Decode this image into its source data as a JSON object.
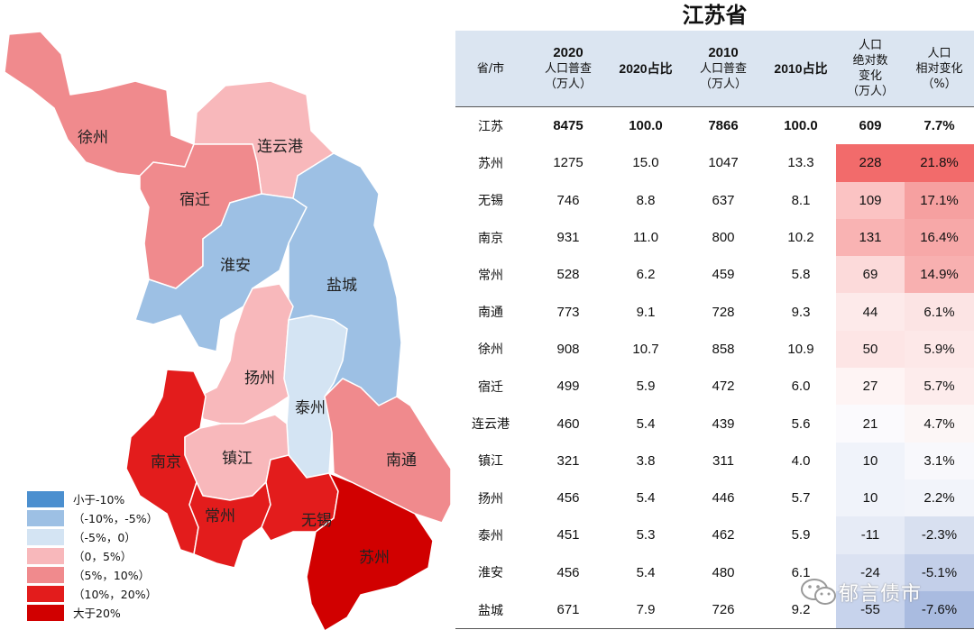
{
  "title": "江苏省",
  "headers": {
    "province": "省/市",
    "pop2020": [
      "2020",
      "人口普查",
      "（万人）"
    ],
    "share2020": "2020占比",
    "pop2010": [
      "2010",
      "人口普查",
      "（万人）"
    ],
    "share2010": "2010占比",
    "abs_change": [
      "人口",
      "绝对数",
      "变化",
      "（万人）"
    ],
    "rel_change": [
      "人口",
      "相对变化",
      "（%）"
    ]
  },
  "rows": [
    {
      "name": "江苏",
      "pop2020": "8475",
      "share2020": "100.0",
      "pop2010": "7866",
      "share2010": "100.0",
      "abs": "609",
      "rel": "7.7%",
      "abs_color": "#ffffff",
      "rel_color": "#ffffff"
    },
    {
      "name": "苏州",
      "pop2020": "1275",
      "share2020": "15.0",
      "pop2010": "1047",
      "share2010": "13.3",
      "abs": "228",
      "rel": "21.8%",
      "abs_color": "#f26b6b",
      "rel_color": "#f26b6b"
    },
    {
      "name": "无锡",
      "pop2020": "746",
      "share2020": "8.8",
      "pop2010": "637",
      "share2010": "8.1",
      "abs": "109",
      "rel": "17.1%",
      "abs_color": "#fbc3c3",
      "rel_color": "#f6a0a0"
    },
    {
      "name": "南京",
      "pop2020": "931",
      "share2020": "11.0",
      "pop2010": "800",
      "share2010": "10.2",
      "abs": "131",
      "rel": "16.4%",
      "abs_color": "#f9b3b3",
      "rel_color": "#f7a8a8"
    },
    {
      "name": "常州",
      "pop2020": "528",
      "share2020": "6.2",
      "pop2010": "459",
      "share2010": "5.8",
      "abs": "69",
      "rel": "14.9%",
      "abs_color": "#fcdada",
      "rel_color": "#f8b0b0"
    },
    {
      "name": "南通",
      "pop2020": "773",
      "share2020": "9.1",
      "pop2010": "728",
      "share2010": "9.3",
      "abs": "44",
      "rel": "6.1%",
      "abs_color": "#fdeaea",
      "rel_color": "#fce4e4"
    },
    {
      "name": "徐州",
      "pop2020": "908",
      "share2020": "10.7",
      "pop2010": "858",
      "share2010": "10.9",
      "abs": "50",
      "rel": "5.9%",
      "abs_color": "#fde5e5",
      "rel_color": "#fde8e8"
    },
    {
      "name": "宿迁",
      "pop2020": "499",
      "share2020": "5.9",
      "pop2010": "472",
      "share2010": "6.0",
      "abs": "27",
      "rel": "5.7%",
      "abs_color": "#fef4f4",
      "rel_color": "#fdecec"
    },
    {
      "name": "连云港",
      "pop2020": "460",
      "share2020": "5.4",
      "pop2010": "439",
      "share2010": "5.6",
      "abs": "21",
      "rel": "4.7%",
      "abs_color": "#fbfafd",
      "rel_color": "#fcf6f6"
    },
    {
      "name": "镇江",
      "pop2020": "321",
      "share2020": "3.8",
      "pop2010": "311",
      "share2010": "4.0",
      "abs": "10",
      "rel": "3.1%",
      "abs_color": "#f0f3fa",
      "rel_color": "#f8f8fc"
    },
    {
      "name": "扬州",
      "pop2020": "456",
      "share2020": "5.4",
      "pop2010": "446",
      "share2010": "5.7",
      "abs": "10",
      "rel": "2.2%",
      "abs_color": "#f0f3fa",
      "rel_color": "#f2f4fa"
    },
    {
      "name": "泰州",
      "pop2020": "451",
      "share2020": "5.3",
      "pop2010": "462",
      "share2010": "5.9",
      "abs": "-11",
      "rel": "-2.3%",
      "abs_color": "#e6ebf6",
      "rel_color": "#d8e0f0"
    },
    {
      "name": "淮安",
      "pop2020": "456",
      "share2020": "5.4",
      "pop2010": "480",
      "share2010": "6.1",
      "abs": "-24",
      "rel": "-5.1%",
      "abs_color": "#dbe2f2",
      "rel_color": "#c3cfe9"
    },
    {
      "name": "盐城",
      "pop2020": "671",
      "share2020": "7.9",
      "pop2010": "726",
      "share2010": "9.2",
      "abs": "-55",
      "rel": "-7.6%",
      "abs_color": "#c7d3ec",
      "rel_color": "#a9bbe0"
    }
  ],
  "legend": [
    {
      "label": "小于-10%",
      "color": "#4b8fcf"
    },
    {
      "label": "（-10%，-5%）",
      "color": "#9dc0e4"
    },
    {
      "label": "（-5%，0）",
      "color": "#d4e4f3"
    },
    {
      "label": "（0，5%）",
      "color": "#f8b8bb"
    },
    {
      "label": "（5%，10%）",
      "color": "#f08a8d"
    },
    {
      "label": "（10%，20%）",
      "color": "#e31c1c"
    },
    {
      "label": "大于20%",
      "color": "#d10000"
    }
  ],
  "map_labels": {
    "xuzhou": "徐州",
    "lianyungang": "连云港",
    "suqian": "宿迁",
    "huaian": "淮安",
    "yancheng": "盐城",
    "yangzhou": "扬州",
    "taizhou": "泰州",
    "nanjing": "南京",
    "zhenjiang": "镇江",
    "nantong": "南通",
    "changzhou": "常州",
    "wuxi": "无锡",
    "suzhou": "苏州"
  },
  "map_colors": {
    "xuzhou": "#f08a8d",
    "lianyungang": "#f8b8bb",
    "suqian": "#f08a8d",
    "huaian": "#9dc0e4",
    "yancheng": "#9dc0e4",
    "yangzhou": "#f8b8bb",
    "taizhou": "#d4e4f3",
    "nanjing": "#e31c1c",
    "zhenjiang": "#f8b8bb",
    "nantong": "#f08a8d",
    "changzhou": "#e31c1c",
    "wuxi": "#e31c1c",
    "suzhou": "#d10000"
  },
  "watermark": "郁言债市",
  "watermark_icon": "wechat-icon"
}
